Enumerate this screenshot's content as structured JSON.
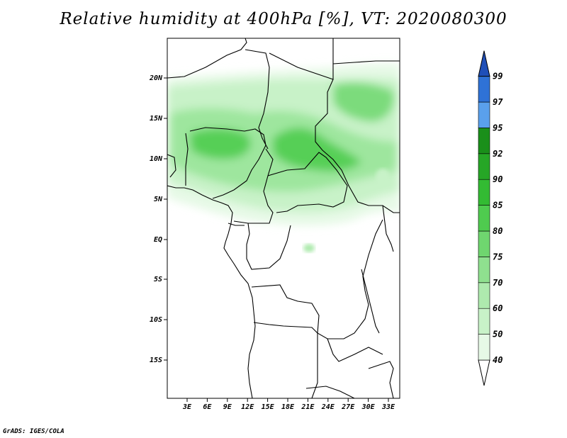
{
  "title": "Relative humidity at 400hPa [%], VT: 2020080300",
  "credit": "GrADS: IGES/COLA",
  "map": {
    "lat_labels": [
      "20N",
      "15N",
      "10N",
      "5N",
      "EQ",
      "5S",
      "10S",
      "15S"
    ],
    "lon_labels": [
      "3E",
      "6E",
      "9E",
      "12E",
      "15E",
      "18E",
      "21E",
      "24E",
      "27E",
      "30E",
      "33E"
    ]
  },
  "colorbar": {
    "levels": [
      "40",
      "50",
      "60",
      "70",
      "75",
      "80",
      "85",
      "90",
      "92",
      "95",
      "97",
      "99"
    ],
    "colors": [
      "#ffffff",
      "#e6f9e6",
      "#c8f2c8",
      "#aeeaae",
      "#8fe08f",
      "#6fd66f",
      "#4fcb4f",
      "#33bb33",
      "#26a626",
      "#1a8f1a",
      "#5aa0ec",
      "#2f72d6",
      "#1f4fb8"
    ]
  }
}
